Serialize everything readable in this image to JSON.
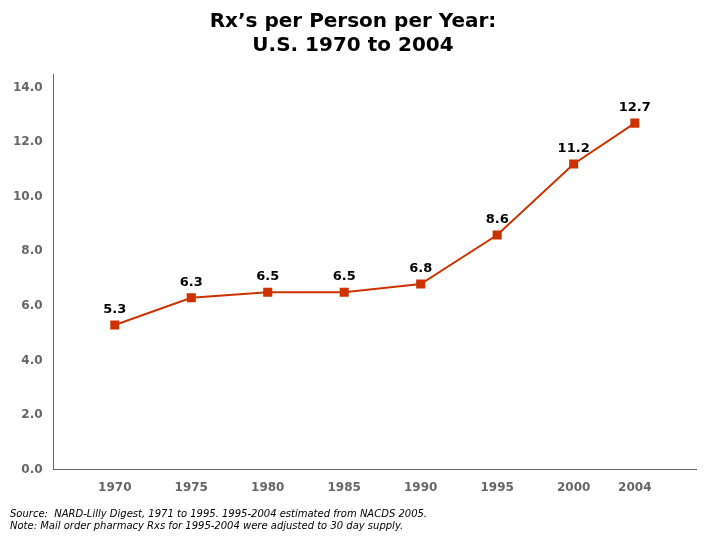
{
  "chart_data": {
    "type": "line",
    "title": "Rx’s per Person per Year:\nU.S. 1970 to 2004",
    "x": [
      1970,
      1975,
      1980,
      1985,
      1990,
      1995,
      2000,
      2004
    ],
    "values": [
      5.3,
      6.3,
      6.5,
      6.5,
      6.8,
      8.6,
      11.2,
      12.7
    ],
    "color": "#CC3300",
    "marker": "square",
    "xlim": [
      1966,
      2008
    ],
    "xticks": [
      1970,
      1975,
      1980,
      1985,
      1990,
      1995,
      2000,
      2004
    ],
    "ylim": [
      0,
      14.5
    ],
    "yticks": [
      {
        "value": 0,
        "label": "0.0"
      },
      {
        "value": 2,
        "label": "2.0"
      },
      {
        "value": 4,
        "label": "4.0"
      },
      {
        "value": 6,
        "label": "6.0"
      },
      {
        "value": 8,
        "label": "8.0"
      },
      {
        "value": 10,
        "label": "10.0"
      },
      {
        "value": 12,
        "label": "12.0"
      },
      {
        "value": 14,
        "label": "14.0"
      }
    ],
    "grid": false,
    "data_labels": true,
    "annotations": [
      "Source:  NARD-Lilly Digest, 1971 to 1995. 1995-2004 estimated from NACDS 2005.\nNote: Mail order pharmacy Rxs for 1995-2004 were adjusted to 30 day supply."
    ]
  }
}
